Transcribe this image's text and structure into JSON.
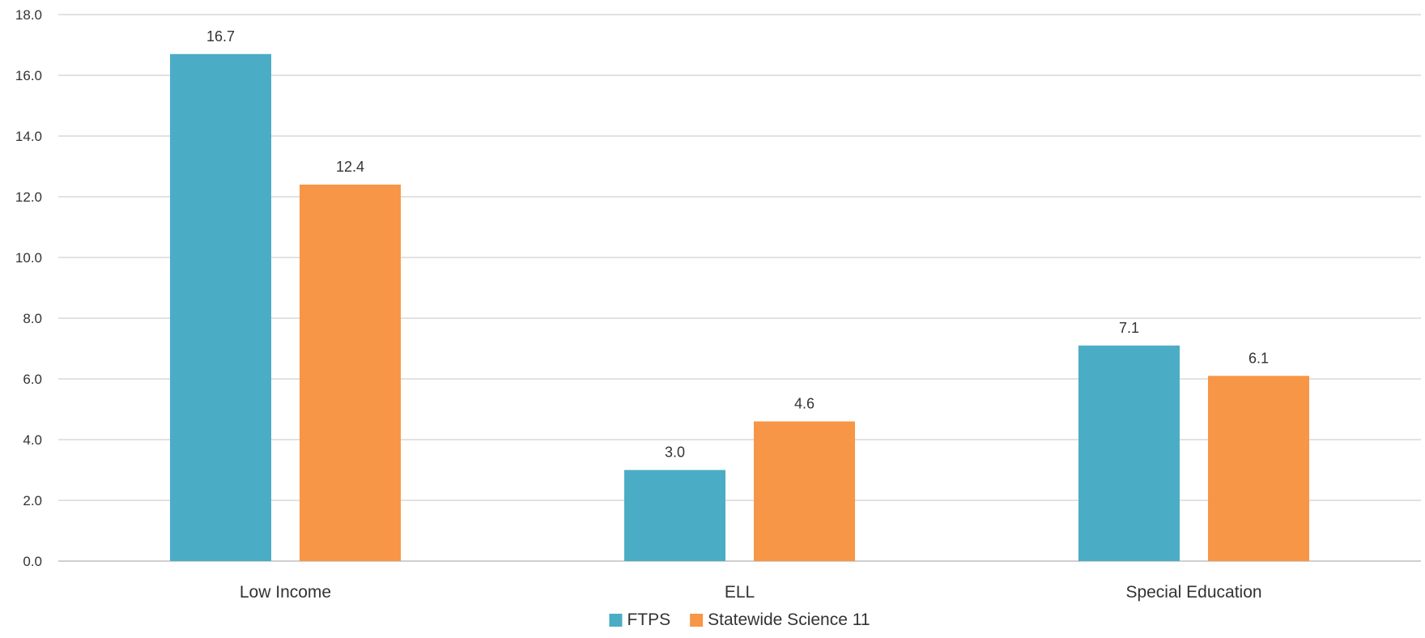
{
  "chart_data": {
    "type": "bar",
    "title": "",
    "xlabel": "",
    "ylabel": "",
    "categories": [
      "Low Income",
      "ELL",
      "Special Education"
    ],
    "series": [
      {
        "name": "FTPS",
        "values": [
          16.7,
          3.0,
          7.1
        ],
        "color": "#4BACC6"
      },
      {
        "name": "Statewide Science 11",
        "values": [
          12.4,
          4.6,
          6.1
        ],
        "color": "#F79646"
      }
    ],
    "ylim": [
      0,
      18
    ],
    "yticks": [
      "0.0",
      "2.0",
      "4.0",
      "6.0",
      "8.0",
      "10.0",
      "12.0",
      "14.0",
      "16.0",
      "18.0"
    ],
    "value_format": "one decimal",
    "grid": true,
    "legend_position": "bottom"
  }
}
